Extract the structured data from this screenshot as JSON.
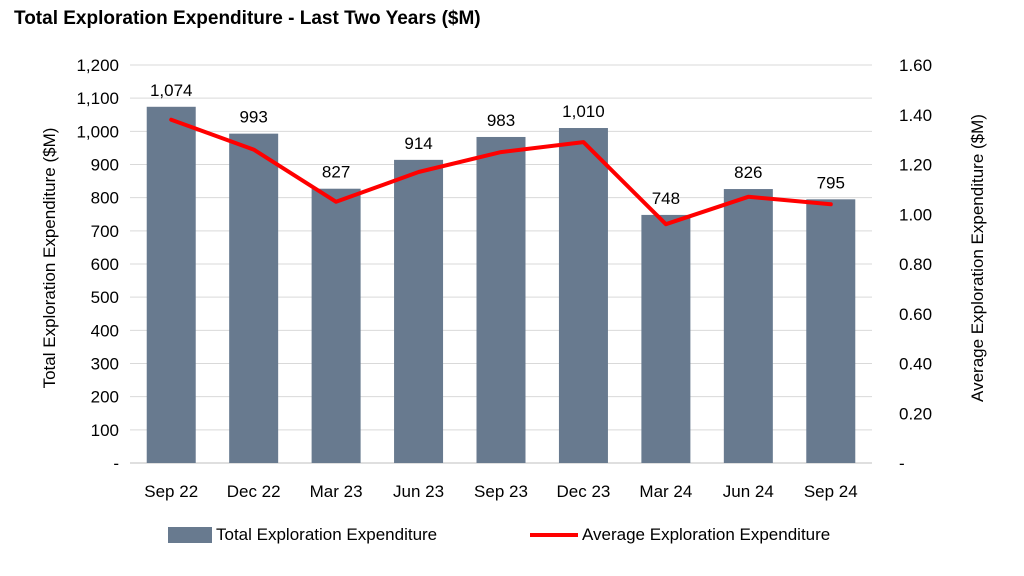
{
  "chart_data": {
    "type": "bar",
    "title": "Total Exploration Expenditure - Last Two Years ($M)",
    "categories": [
      "Sep 22",
      "Dec 22",
      "Mar 23",
      "Jun 23",
      "Sep 23",
      "Dec 23",
      "Mar 24",
      "Jun 24",
      "Sep 24"
    ],
    "series": [
      {
        "name": "Total Exploration Expenditure",
        "type": "bar",
        "axis": "left",
        "color": "#687a8f",
        "values": [
          1074,
          993,
          827,
          914,
          983,
          1010,
          748,
          826,
          795
        ],
        "labels": [
          "1,074",
          "993",
          "827",
          "914",
          "983",
          "1,010",
          "748",
          "826",
          "795"
        ]
      },
      {
        "name": "Average Exploration Expenditure",
        "type": "line",
        "axis": "right",
        "color": "#ff0000",
        "values": [
          1.38,
          1.26,
          1.05,
          1.17,
          1.25,
          1.29,
          0.96,
          1.07,
          1.04
        ]
      }
    ],
    "ylabel": "Total Exploration Expenditure ($M)",
    "y2label": "Average Exploration Expenditure ($M)",
    "ylim": [
      0,
      1200
    ],
    "y2lim": [
      0,
      1.6
    ],
    "yticks": [
      "-",
      "100",
      "200",
      "300",
      "400",
      "500",
      "600",
      "700",
      "800",
      "900",
      "1,000",
      "1,100",
      "1,200"
    ],
    "y2ticks": [
      "-",
      "0.20",
      "0.40",
      "0.60",
      "0.80",
      "1.00",
      "1.20",
      "1.40",
      "1.60"
    ],
    "grid": true,
    "legend_position": "bottom"
  }
}
